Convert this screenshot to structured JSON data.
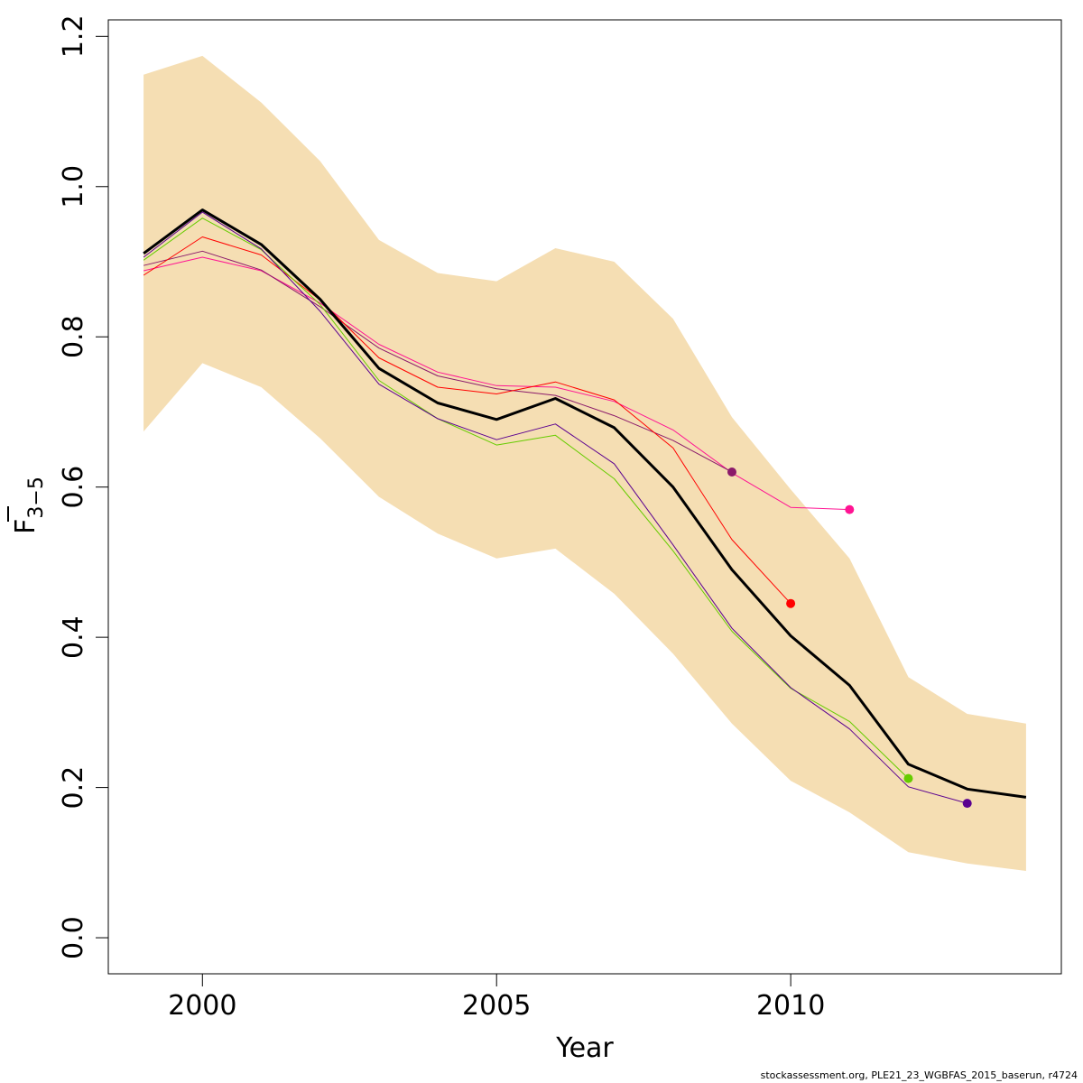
{
  "chart_data": {
    "type": "line",
    "xlabel": "Year",
    "ylabel": {
      "main": "F",
      "sub": "3−5"
    },
    "xlim": [
      1998.4,
      2014.6
    ],
    "ylim": [
      -0.048,
      1.222
    ],
    "x_ticks": [
      2000,
      2005,
      2010
    ],
    "y_ticks": [
      0.0,
      0.2,
      0.4,
      0.6,
      0.8,
      1.0,
      1.2
    ],
    "y_tick_labels": [
      "0.0",
      "0.2",
      "0.4",
      "0.6",
      "0.8",
      "1.0",
      "1.2"
    ],
    "band": {
      "color": "#f5deb3",
      "x": [
        1999,
        2000,
        2001,
        2002,
        2003,
        2004,
        2005,
        2006,
        2007,
        2008,
        2009,
        2010,
        2011,
        2012,
        2013,
        2014
      ],
      "upper": [
        1.149,
        1.174,
        1.112,
        1.034,
        0.929,
        0.885,
        0.874,
        0.918,
        0.9,
        0.824,
        0.693,
        0.597,
        0.505,
        0.347,
        0.298,
        0.285
      ],
      "lower": [
        0.674,
        0.765,
        0.733,
        0.665,
        0.587,
        0.538,
        0.505,
        0.518,
        0.458,
        0.378,
        0.285,
        0.209,
        0.167,
        0.114,
        0.099,
        0.089
      ]
    },
    "series": [
      {
        "color": "#ff1493",
        "width": 1,
        "x": [
          1999,
          2000,
          2001,
          2002,
          2003,
          2004,
          2005,
          2006,
          2007,
          2008,
          2009,
          2010,
          2011
        ],
        "values": [
          0.888,
          0.906,
          0.888,
          0.845,
          0.79,
          0.753,
          0.735,
          0.733,
          0.714,
          0.676,
          0.619,
          0.573,
          0.57
        ],
        "end_point": true
      },
      {
        "color": "#8b1a6a",
        "width": 1,
        "x": [
          1999,
          2000,
          2001,
          2002,
          2003,
          2004,
          2005,
          2006,
          2007,
          2008,
          2009
        ],
        "values": [
          0.895,
          0.914,
          0.889,
          0.84,
          0.785,
          0.748,
          0.731,
          0.722,
          0.695,
          0.662,
          0.62
        ],
        "end_point": true
      },
      {
        "color": "#ff0000",
        "width": 1,
        "x": [
          1999,
          2000,
          2001,
          2002,
          2003,
          2004,
          2005,
          2006,
          2007,
          2008,
          2009,
          2010
        ],
        "values": [
          0.882,
          0.933,
          0.909,
          0.849,
          0.772,
          0.733,
          0.724,
          0.74,
          0.716,
          0.652,
          0.53,
          0.445
        ],
        "end_point": true
      },
      {
        "color": "#66cc00",
        "width": 1,
        "x": [
          1999,
          2000,
          2001,
          2002,
          2003,
          2004,
          2005,
          2006,
          2007,
          2008,
          2009,
          2010,
          2011,
          2012
        ],
        "values": [
          0.902,
          0.958,
          0.916,
          0.843,
          0.742,
          0.691,
          0.656,
          0.669,
          0.611,
          0.515,
          0.408,
          0.332,
          0.288,
          0.212
        ],
        "end_point": true
      },
      {
        "color": "#5a0090",
        "width": 1,
        "x": [
          1999,
          2000,
          2001,
          2002,
          2003,
          2004,
          2005,
          2006,
          2007,
          2008,
          2009,
          2010,
          2011,
          2012,
          2013
        ],
        "values": [
          0.906,
          0.966,
          0.917,
          0.834,
          0.737,
          0.691,
          0.663,
          0.684,
          0.631,
          0.523,
          0.412,
          0.333,
          0.278,
          0.201,
          0.179
        ],
        "end_point": true
      },
      {
        "color": "#000000",
        "width": 3,
        "x": [
          1999,
          2000,
          2001,
          2002,
          2003,
          2004,
          2005,
          2006,
          2007,
          2008,
          2009,
          2010,
          2011,
          2012,
          2013,
          2014
        ],
        "values": [
          0.911,
          0.969,
          0.923,
          0.85,
          0.758,
          0.712,
          0.69,
          0.718,
          0.679,
          0.6,
          0.49,
          0.402,
          0.336,
          0.231,
          0.198,
          0.187
        ],
        "end_point": false
      }
    ]
  },
  "footer": {
    "text": "stockassessment.org, PLE21_23_WGBFAS_2015_baserun, r4724"
  }
}
